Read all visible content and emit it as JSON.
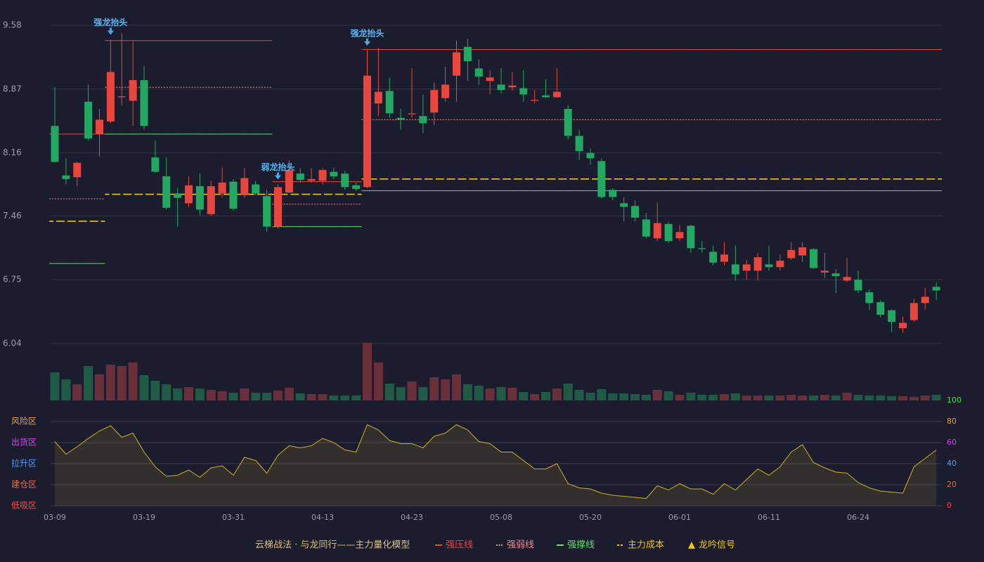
{
  "chart_data": [
    {
      "type": "candlestick",
      "categories": [
        "03-09",
        null,
        null,
        null,
        null,
        null,
        null,
        null,
        "03-19",
        null,
        null,
        null,
        null,
        null,
        null,
        null,
        "03-31",
        null,
        null,
        null,
        null,
        null,
        null,
        null,
        "04-13",
        null,
        null,
        null,
        null,
        null,
        null,
        null,
        "04-23",
        null,
        null,
        null,
        null,
        null,
        null,
        null,
        "05-08",
        null,
        null,
        null,
        null,
        null,
        null,
        null,
        "05-20",
        null,
        null,
        null,
        null,
        null,
        null,
        null,
        "06-01",
        null,
        null,
        null,
        null,
        null,
        null,
        null,
        "06-11",
        null,
        null,
        null,
        null,
        null,
        null,
        null,
        "06-24",
        null,
        null,
        null,
        null,
        null,
        null,
        null
      ],
      "open": [
        8.46,
        7.91,
        7.89,
        8.73,
        8.37,
        8.51,
        8.78,
        8.74,
        8.97,
        8.11,
        7.9,
        7.71,
        7.6,
        7.79,
        7.48,
        7.71,
        7.84,
        7.69,
        7.81,
        7.68,
        7.34,
        7.72,
        7.93,
        7.85,
        7.85,
        7.95,
        7.93,
        7.8,
        7.78,
        8.71,
        8.85,
        8.55,
        8.59,
        8.57,
        8.61,
        8.77,
        9.02,
        9.34,
        9.1,
        8.96,
        8.92,
        8.89,
        8.88,
        8.74,
        8.8,
        8.78,
        8.65,
        8.35,
        8.16,
        8.07,
        7.75,
        7.6,
        7.57,
        7.42,
        7.21,
        7.37,
        7.21,
        7.35,
        7.1,
        7.06,
        6.95,
        6.92,
        6.85,
        6.85,
        6.92,
        6.89,
        6.99,
        7.02,
        7.09,
        6.83,
        6.82,
        6.74,
        6.75,
        6.61,
        6.5,
        6.41,
        6.21,
        6.3,
        6.49,
        6.67
      ],
      "high": [
        8.89,
        8.1,
        8.06,
        8.92,
        8.65,
        9.42,
        9.49,
        9.41,
        9.13,
        8.3,
        8.11,
        7.77,
        7.9,
        7.93,
        7.85,
        8.0,
        7.87,
        7.99,
        7.85,
        7.75,
        7.81,
        8.08,
        7.99,
        7.99,
        7.99,
        8.0,
        7.96,
        7.83,
        9.3,
        9.33,
        9.0,
        8.65,
        9.1,
        8.81,
        8.94,
        9.12,
        9.41,
        9.43,
        9.2,
        9.08,
        9.1,
        9.06,
        9.08,
        8.86,
        8.98,
        9.1,
        8.69,
        8.42,
        8.21,
        8.1,
        7.77,
        7.67,
        7.63,
        7.49,
        7.61,
        7.39,
        7.36,
        7.36,
        7.18,
        7.13,
        7.17,
        7.13,
        6.97,
        7.05,
        7.13,
        7.03,
        7.17,
        7.17,
        7.1,
        7.05,
        6.87,
        6.99,
        6.85,
        6.64,
        6.52,
        6.42,
        6.34,
        6.54,
        6.66,
        6.72
      ],
      "low": [
        8.05,
        7.81,
        7.79,
        8.3,
        8.12,
        8.49,
        8.69,
        8.46,
        8.42,
        7.94,
        7.53,
        7.34,
        7.56,
        7.47,
        7.46,
        7.67,
        7.52,
        7.66,
        7.69,
        7.28,
        7.32,
        7.71,
        7.83,
        7.83,
        7.81,
        7.87,
        7.75,
        7.74,
        7.77,
        8.57,
        8.55,
        8.42,
        8.55,
        8.38,
        8.47,
        8.73,
        8.73,
        8.96,
        8.92,
        8.81,
        8.82,
        8.85,
        8.73,
        8.71,
        8.77,
        8.77,
        8.31,
        8.08,
        8.03,
        7.65,
        7.63,
        7.4,
        7.4,
        7.21,
        7.18,
        7.16,
        7.18,
        7.05,
        7.05,
        6.91,
        6.91,
        6.74,
        6.75,
        6.74,
        6.85,
        6.85,
        6.97,
        6.95,
        6.87,
        6.77,
        6.6,
        6.72,
        6.6,
        6.41,
        6.33,
        6.17,
        6.16,
        6.28,
        6.42,
        6.52
      ],
      "close": [
        8.06,
        7.87,
        8.05,
        8.32,
        8.53,
        9.06,
        8.79,
        8.97,
        8.46,
        7.95,
        7.55,
        7.66,
        7.8,
        7.53,
        7.79,
        7.83,
        7.54,
        7.88,
        7.71,
        7.34,
        7.78,
        7.97,
        7.86,
        7.87,
        7.97,
        7.9,
        7.78,
        7.76,
        9.02,
        8.84,
        8.6,
        8.53,
        8.6,
        8.49,
        8.86,
        8.92,
        9.28,
        9.18,
        9.01,
        9.0,
        8.86,
        8.91,
        8.81,
        8.75,
        8.78,
        8.84,
        8.35,
        8.18,
        8.1,
        7.67,
        7.67,
        7.56,
        7.44,
        7.23,
        7.38,
        7.18,
        7.28,
        7.1,
        7.09,
        6.94,
        7.03,
        6.81,
        6.92,
        7.0,
        6.89,
        6.96,
        7.08,
        7.11,
        6.88,
        6.85,
        6.79,
        6.78,
        6.63,
        6.49,
        6.36,
        6.28,
        6.27,
        6.49,
        6.56,
        6.63
      ],
      "up_color": "#e8473d",
      "down_color": "#22a861",
      "ylim": [
        6.04,
        9.58
      ],
      "yticks": [
        6.04,
        6.75,
        7.46,
        8.16,
        8.87,
        9.58
      ],
      "grid": true,
      "series": [
        {
          "name": "强压线",
          "color": "#e8473d",
          "style": "solid",
          "values": [
            8.37,
            8.37,
            8.37,
            8.37,
            8.37,
            9.41,
            9.41,
            9.41,
            9.41,
            9.41,
            9.41,
            9.41,
            9.41,
            9.41,
            9.41,
            9.41,
            9.41,
            9.41,
            9.41,
            9.41,
            7.84,
            7.84,
            7.84,
            7.84,
            7.84,
            7.84,
            7.84,
            7.84,
            9.31,
            9.31,
            9.31,
            9.31,
            9.31,
            9.31,
            9.31,
            9.31,
            9.31,
            9.31,
            9.31,
            9.31,
            9.31,
            9.31,
            9.31,
            9.31,
            9.31,
            9.31,
            9.31,
            9.31,
            9.31,
            9.31,
            9.31,
            9.31,
            9.31,
            9.31,
            9.31,
            9.31,
            9.31,
            9.31,
            9.31,
            9.31,
            9.31,
            9.31,
            9.31,
            9.31,
            9.31,
            9.31,
            9.31,
            9.31,
            9.31,
            9.31,
            9.31,
            9.31,
            9.31,
            9.31,
            9.31,
            9.31,
            9.31,
            9.31,
            9.31,
            9.31
          ]
        },
        {
          "name": "强弱线",
          "color": "#f28b8b",
          "style": "dotted",
          "values": [
            7.65,
            7.65,
            7.65,
            7.65,
            7.65,
            8.89,
            8.89,
            8.89,
            8.89,
            8.89,
            8.89,
            8.89,
            8.89,
            8.89,
            8.89,
            8.89,
            8.89,
            8.89,
            8.89,
            8.89,
            7.59,
            7.59,
            7.59,
            7.59,
            7.59,
            7.59,
            7.59,
            7.59,
            8.53,
            8.53,
            8.53,
            8.53,
            8.53,
            8.53,
            8.53,
            8.53,
            8.53,
            8.53,
            8.53,
            8.53,
            8.53,
            8.53,
            8.53,
            8.53,
            8.53,
            8.53,
            8.53,
            8.53,
            8.53,
            8.53,
            8.53,
            8.53,
            8.53,
            8.53,
            8.53,
            8.53,
            8.53,
            8.53,
            8.53,
            8.53,
            8.53,
            8.53,
            8.53,
            8.53,
            8.53,
            8.53,
            8.53,
            8.53,
            8.53,
            8.53,
            8.53,
            8.53,
            8.53,
            8.53,
            8.53,
            8.53,
            8.53,
            8.53,
            8.53,
            8.53
          ]
        },
        {
          "name": "强撑线",
          "color": "#5fe06a",
          "style": "solid",
          "values": [
            6.93,
            6.93,
            6.93,
            6.93,
            6.93,
            8.37,
            8.37,
            8.37,
            8.37,
            8.37,
            8.37,
            8.37,
            8.37,
            8.37,
            8.37,
            8.37,
            8.37,
            8.37,
            8.37,
            8.37,
            7.34,
            7.34,
            7.34,
            7.34,
            7.34,
            7.34,
            7.34,
            7.34,
            7.74,
            7.74,
            7.74,
            7.74,
            7.74,
            7.74,
            7.74,
            7.74,
            7.74,
            7.74,
            7.74,
            7.74,
            7.74,
            7.74,
            7.74,
            7.74,
            7.74,
            7.74,
            7.74,
            7.74,
            7.74,
            7.74,
            7.74,
            7.74,
            7.74,
            7.74,
            7.74,
            7.74,
            7.74,
            7.74,
            7.74,
            7.74,
            7.74,
            7.74,
            7.74,
            7.74,
            7.74,
            7.74,
            7.74,
            7.74,
            7.74,
            7.74,
            7.74,
            7.74,
            7.74,
            7.74,
            7.74,
            7.74,
            7.74,
            7.74,
            7.74,
            7.74
          ]
        },
        {
          "name": "主力成本",
          "color": "#f0c419",
          "style": "dashed",
          "values": [
            7.4,
            7.4,
            7.4,
            7.4,
            7.4,
            7.7,
            7.7,
            7.7,
            7.7,
            7.7,
            7.7,
            7.7,
            7.7,
            7.7,
            7.7,
            7.7,
            7.7,
            7.7,
            7.7,
            7.7,
            7.7,
            7.7,
            7.7,
            7.7,
            7.7,
            7.7,
            7.7,
            7.7,
            7.87,
            7.87,
            7.87,
            7.87,
            7.87,
            7.87,
            7.87,
            7.87,
            7.87,
            7.87,
            7.87,
            7.87,
            7.87,
            7.87,
            7.87,
            7.87,
            7.87,
            7.87,
            7.87,
            7.87,
            7.87,
            7.87,
            7.87,
            7.87,
            7.87,
            7.87,
            7.87,
            7.87,
            7.87,
            7.87,
            7.87,
            7.87,
            7.87,
            7.87,
            7.87,
            7.87,
            7.87,
            7.87,
            7.87,
            7.87,
            7.87,
            7.87,
            7.87,
            7.87,
            7.87,
            7.87,
            7.87,
            7.87,
            7.87,
            7.87,
            7.87,
            7.87
          ]
        }
      ],
      "signals": [
        null,
        null,
        null,
        null,
        null,
        "强龙抬头",
        null,
        null,
        null,
        null,
        null,
        null,
        null,
        null,
        null,
        null,
        null,
        null,
        null,
        null,
        "弱龙抬头",
        null,
        null,
        null,
        null,
        null,
        null,
        null,
        "强龙抬头",
        null,
        null,
        null,
        null,
        null,
        null,
        null,
        null,
        null,
        null,
        null,
        null,
        null,
        null,
        null,
        null,
        null,
        null,
        null,
        null,
        null,
        null,
        null,
        null,
        null,
        null,
        null,
        null,
        null,
        null,
        null,
        null,
        null,
        null,
        null,
        null,
        null,
        null,
        null,
        null,
        null,
        null,
        null,
        null,
        null,
        null,
        null,
        null,
        null,
        null,
        null
      ],
      "signal_name": "龙吟信号",
      "signal_color": "#f0c419",
      "legend_title": "云梯战法 · 与龙同行——主力量化模型"
    },
    {
      "type": "bar",
      "values": [
        40,
        30,
        23,
        49,
        37,
        51,
        49,
        54,
        36,
        28,
        23,
        17,
        19,
        17,
        15,
        13,
        11,
        17,
        11,
        11,
        14,
        18,
        10,
        9,
        9,
        7,
        7,
        7,
        82,
        54,
        24,
        19,
        27,
        19,
        33,
        30,
        37,
        23,
        21,
        17,
        19,
        18,
        12,
        9,
        12,
        17,
        24,
        15,
        11,
        16,
        10,
        10,
        9,
        8,
        15,
        13,
        8,
        11,
        8,
        8,
        9,
        10,
        7,
        7,
        7,
        7,
        8,
        7,
        7,
        8,
        7,
        11,
        8,
        7,
        7,
        6,
        6,
        5,
        7,
        8
      ],
      "up_color": "#6a2f3a",
      "down_color": "#1f5a45"
    },
    {
      "type": "area",
      "values": [
        61,
        49,
        56,
        64,
        71,
        76,
        65,
        69,
        51,
        37,
        28,
        29,
        34,
        27,
        36,
        38,
        29,
        46,
        43,
        31,
        48,
        57,
        55,
        57,
        64,
        60,
        53,
        51,
        77,
        72,
        62,
        59,
        59,
        55,
        66,
        69,
        77,
        72,
        61,
        59,
        51,
        51,
        43,
        35,
        35,
        40,
        21,
        17,
        16,
        12,
        10,
        9,
        8,
        7,
        19,
        15,
        21,
        16,
        16,
        11,
        21,
        15,
        25,
        35,
        29,
        37,
        51,
        58,
        41,
        36,
        32,
        31,
        22,
        17,
        14,
        13,
        12,
        37,
        45,
        53
      ],
      "color": "#d4b020",
      "ylim": [
        0,
        100
      ],
      "yticks": [
        0,
        20,
        40,
        60,
        80,
        100
      ],
      "ytick_colors": [
        "#ff4a4a",
        "#f06a3a",
        "#4a9eff",
        "#e040fb",
        "#f0a030",
        "#39e639"
      ],
      "zones": [
        {
          "label": "风险区",
          "value": 80,
          "color": "#f0a030"
        },
        {
          "label": "出货区",
          "value": 60,
          "color": "#e040fb"
        },
        {
          "label": "拉升区",
          "value": 40,
          "color": "#4a9eff"
        },
        {
          "label": "建仓区",
          "value": 20,
          "color": "#f06a3a"
        },
        {
          "label": "低吸区",
          "value": 0,
          "color": "#ff4a4a"
        }
      ]
    }
  ]
}
